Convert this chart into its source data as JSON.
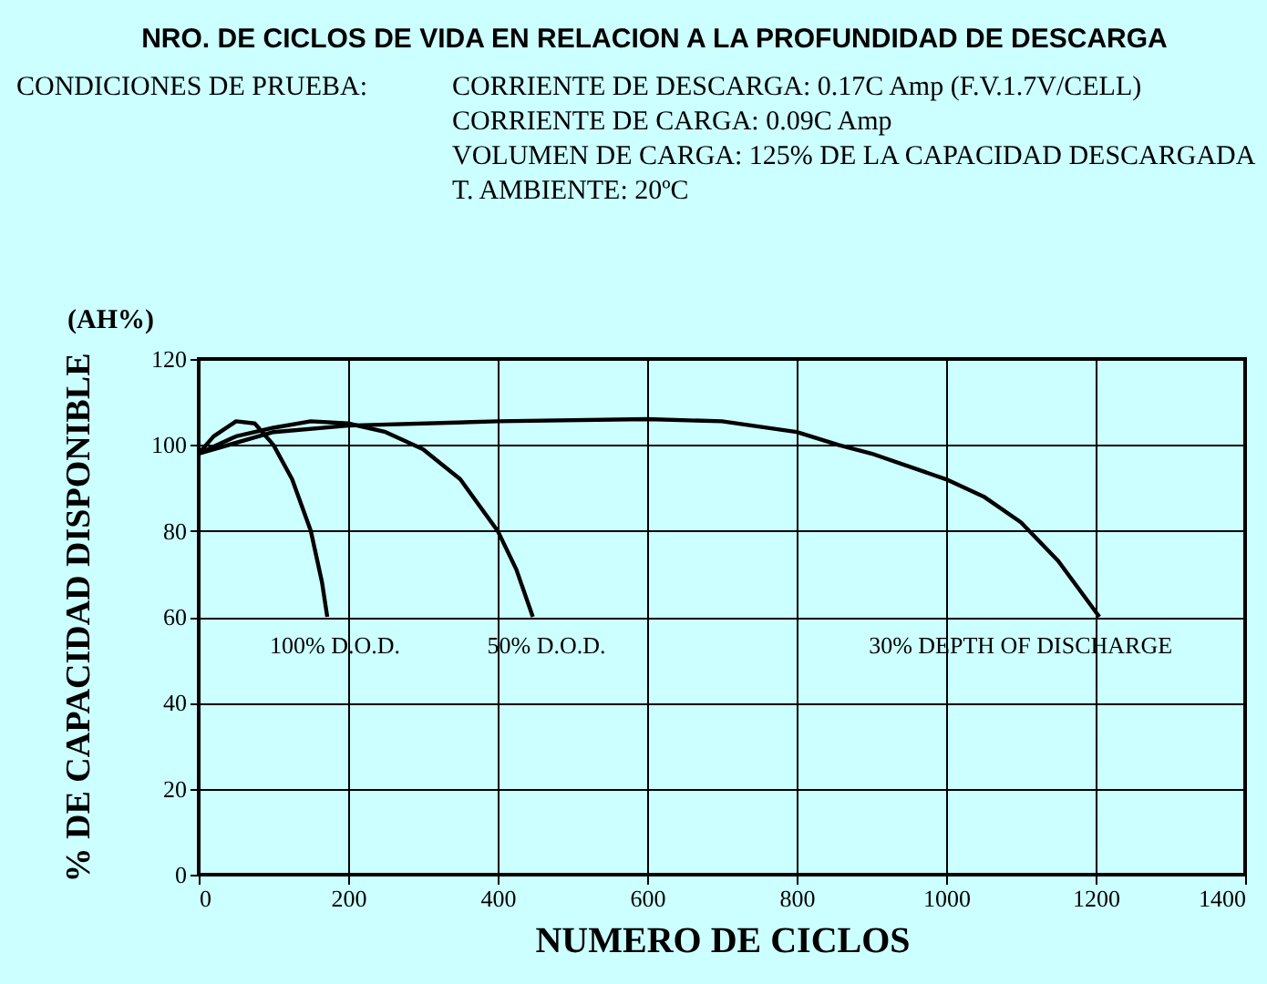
{
  "chart_data": {
    "type": "line",
    "title": "NRO. DE CICLOS DE VIDA EN RELACION A LA  PROFUNDIDAD DE DESCARGA",
    "xlabel": "NUMERO DE CICLOS",
    "ylabel": "% DE CAPACIDAD DISPONIBLE",
    "annotations": [
      "CONDICIONES DE PRUEBA:",
      "CORRIENTE DE DESCARGA: 0.17C Amp (F.V.1.7V/CELL)",
      "CORRIENTE DE CARGA: 0.09C Amp",
      "VOLUMEN DE CARGA: 125% DE LA CAPACIDAD DESCARGADA",
      "T. AMBIENTE: 20ºC",
      "(AH%)"
    ],
    "series": [
      {
        "name": "100% D.O.D.",
        "color": "#000000",
        "x": [
          0,
          20,
          50,
          75,
          100,
          125,
          150,
          165,
          172
        ],
        "values": [
          98,
          102,
          105.5,
          105,
          100,
          92,
          80,
          68,
          60
        ]
      },
      {
        "name": "50% D.O.D.",
        "color": "#000000",
        "x": [
          0,
          50,
          100,
          150,
          200,
          250,
          300,
          350,
          400,
          425,
          447
        ],
        "values": [
          98,
          102,
          104,
          105.5,
          105,
          103,
          99,
          92,
          80,
          71,
          60
        ]
      },
      {
        "name": "30% DEPTH OF DISCHARGE",
        "color": "#000000",
        "x": [
          0,
          100,
          200,
          400,
          600,
          700,
          800,
          856,
          900,
          1000,
          1050,
          1100,
          1150,
          1205
        ],
        "values": [
          98,
          103,
          104.5,
          105.5,
          106,
          105.5,
          103,
          100,
          98,
          92,
          88,
          82,
          73,
          60
        ]
      }
    ],
    "xlim": [
      0,
      1400
    ],
    "xticks": [
      0,
      200,
      400,
      600,
      800,
      1000,
      1200,
      1400
    ],
    "ylim": [
      0,
      120
    ],
    "yticks": [
      0,
      20,
      40,
      60,
      80,
      100,
      120
    ],
    "grid": true,
    "legend": false,
    "marker": "none",
    "line_style": "solid"
  }
}
